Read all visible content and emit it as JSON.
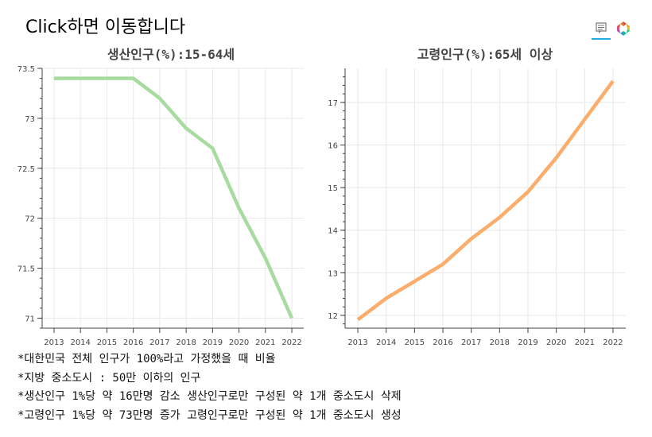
{
  "header": {
    "link_text": "Click하면 이동합니다"
  },
  "toolbar": {
    "hover_icon": "speech-bubble-icon",
    "logo_icon": "bokeh-logo-icon",
    "accent": "#26aae1"
  },
  "chart_data": [
    {
      "type": "line",
      "title": "생산인구(%):15-64세",
      "color": "#a8dba0",
      "x": [
        2013,
        2014,
        2015,
        2016,
        2017,
        2018,
        2019,
        2020,
        2021,
        2022
      ],
      "xticks": [
        "2013",
        "2014",
        "2015",
        "2016",
        "2017",
        "2018",
        "2019",
        "2020",
        "2021",
        "2022"
      ],
      "values": [
        73.4,
        73.4,
        73.4,
        73.4,
        73.2,
        72.9,
        72.7,
        72.1,
        71.6,
        71.0
      ],
      "ylim": [
        70.9,
        73.5
      ],
      "yticks": [
        71,
        71.5,
        72,
        72.5,
        73,
        73.5
      ],
      "yticklabels": [
        "71",
        "71.5",
        "72",
        "72.5",
        "73",
        "73.5"
      ],
      "grid": true
    },
    {
      "type": "line",
      "title": "고령인구(%):65세 이상",
      "color": "#fbad6c",
      "x": [
        2013,
        2014,
        2015,
        2016,
        2017,
        2018,
        2019,
        2020,
        2021,
        2022
      ],
      "xticks": [
        "2013",
        "2014",
        "2015",
        "2016",
        "2017",
        "2018",
        "2019",
        "2020",
        "2021",
        "2022"
      ],
      "values": [
        11.9,
        12.4,
        12.8,
        13.2,
        13.8,
        14.3,
        14.9,
        15.7,
        16.6,
        17.5
      ],
      "ylim": [
        11.7,
        17.8
      ],
      "yticks": [
        12,
        13,
        14,
        15,
        16,
        17
      ],
      "yticklabels": [
        "12",
        "13",
        "14",
        "15",
        "16",
        "17"
      ],
      "grid": true
    }
  ],
  "notes": [
    "*대한민국 전체 인구가 100%라고 가정했을 때 비율",
    "*지방 중소도시 : 50만 이하의 인구",
    "*생산인구 1%당 약 16만명 감소 생산인구로만 구성된 약 1개 중소도시 삭제",
    "*고령인구 1%당 약 73만명 증가 고령인구로만 구성된 약 1개 중소도시 생성"
  ]
}
